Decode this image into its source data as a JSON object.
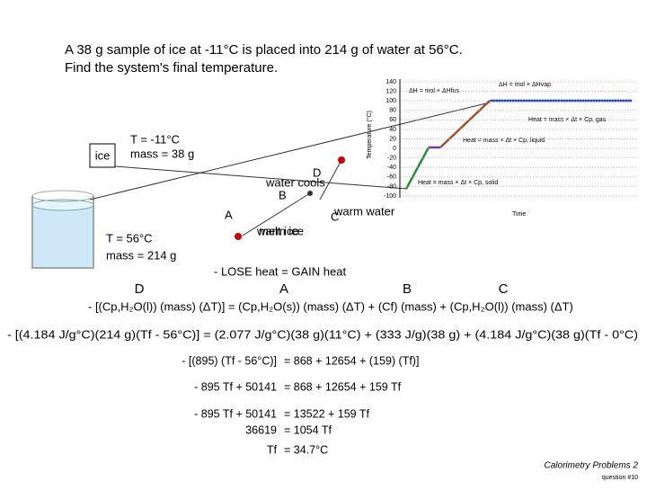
{
  "problem": {
    "line1": "A 38 g sample of ice at -11°C is placed into 214 g of water at 56°C.",
    "line2": "Find the system's final temperature."
  },
  "diagram": {
    "ice": "ice",
    "ice_temp": "T = -11°C",
    "ice_mass": "mass = 38 g",
    "water_temp": "T = 56°C",
    "water_mass": "mass = 214 g",
    "point_d": "D",
    "water_cools": "water cools",
    "point_b": "B",
    "point_a": "A",
    "point_c": "C",
    "warm_water": "warm water",
    "warm_ice": "warm ice",
    "melt_ice": "melt ice"
  },
  "heating_curve": {
    "y_label": "Temperature (°C)",
    "x_label": "Time",
    "yticks": [
      140,
      120,
      100,
      80,
      60,
      40,
      20,
      0,
      -20,
      -40,
      -60,
      -80,
      -100
    ],
    "ylim": [
      -100,
      140
    ],
    "fus": "ΔH = mol × ΔHfus",
    "vap": "ΔH = mol × ΔHvap",
    "gas": "Heat = mass × Δt × Cp, gas",
    "liquid": "Heat = mass × Δt × Cp, liquid",
    "solid": "Heat = mass × Δt × Cp, solid"
  },
  "balance": "- LOSE heat = GAIN heat",
  "letters": [
    "D",
    "A",
    "B",
    "C"
  ],
  "equations": {
    "general": "- [(Cp,H₂O(l)) (mass) (ΔT)]  =  (Cp,H₂O(s)) (mass) (ΔT)  +  (Cf) (mass)  +  (Cp,H₂O(l)) (mass) (ΔT)",
    "substituted": "- [(4.184 J/g°C)(214 g)(Tf - 56°C)]  =  (2.077 J/g°C)(38 g)(11°C)  +  (333 J/g)(38 g)  + (4.184 J/g°C)(38 g)(Tf - 0°C)",
    "steps": [
      [
        "- [(895) (Tf - 56°C)]",
        "=  868  +  12654  +  (159) (Tf)]"
      ],
      [
        "- 895 Tf  +  50141",
        "=  868  +  12654  +  159 Tf"
      ],
      [
        "- 895 Tf  +  50141",
        "=  13522  +  159 Tf"
      ],
      [
        "36619",
        "=  1054 Tf"
      ],
      [
        "Tf",
        "=  34.7°C"
      ]
    ]
  },
  "footer": {
    "title": "Calorimetry Problems 2",
    "question": "question #10"
  }
}
